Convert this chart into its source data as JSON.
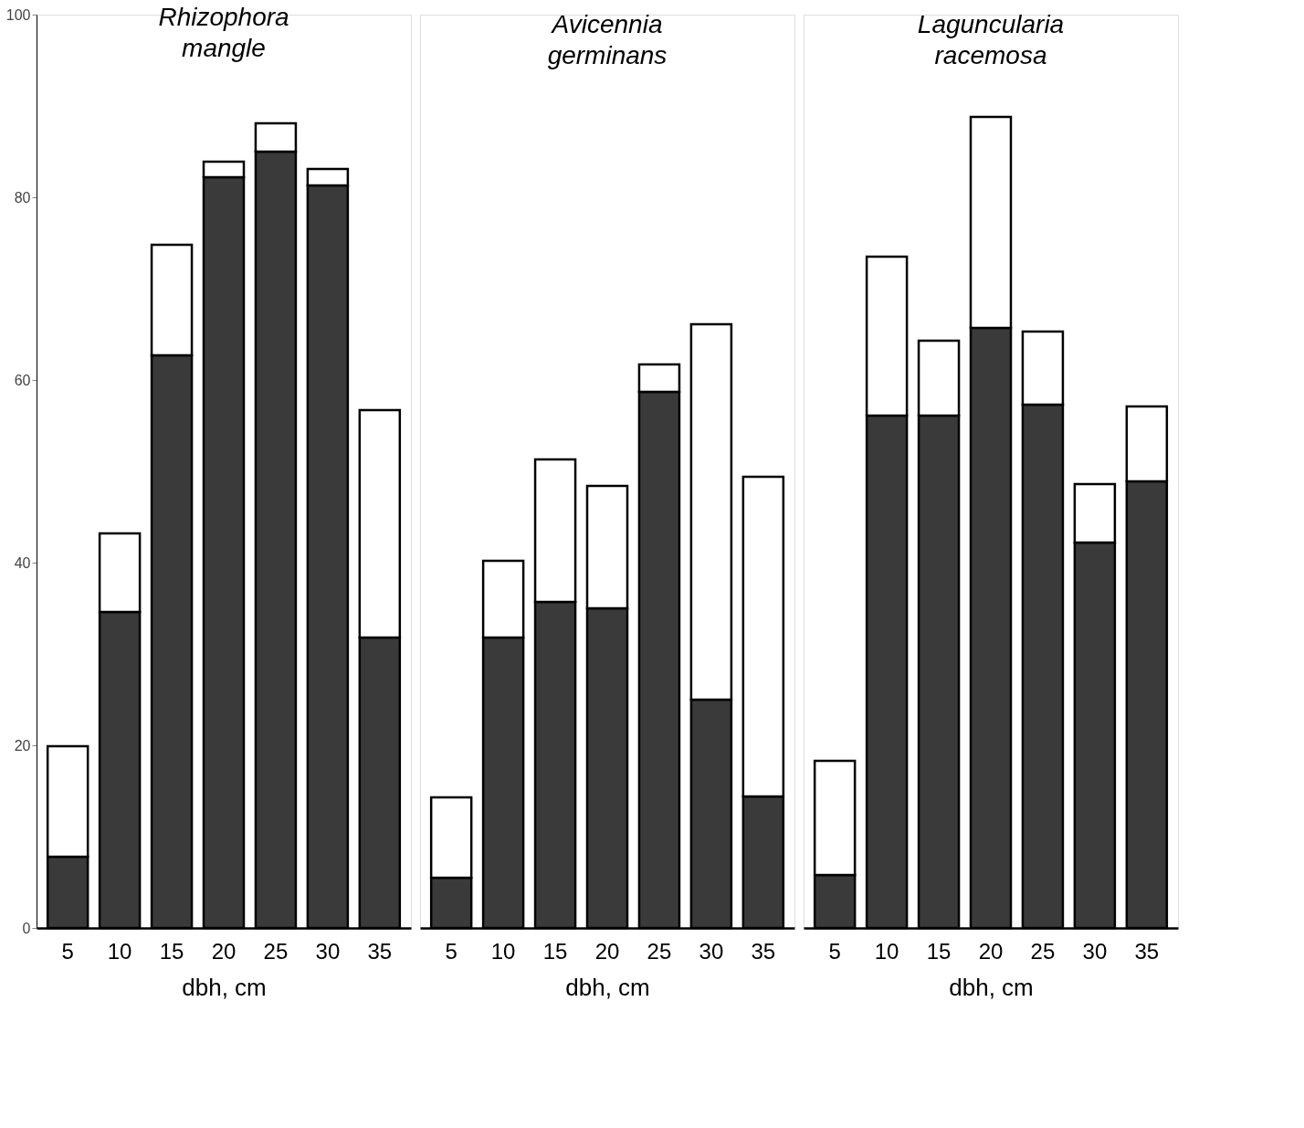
{
  "chart_data": [
    {
      "type": "bar",
      "stacked": true,
      "title": "Rhizophora mangle",
      "xlabel": "dbh, cm",
      "categories": [
        "5",
        "10",
        "15",
        "20",
        "25",
        "30",
        "35"
      ],
      "ylim": [
        0,
        100
      ],
      "yticks": [
        0,
        20,
        40,
        60,
        80,
        100
      ],
      "grid": false,
      "legend": false,
      "series": [
        {
          "color": "#3a3a3a",
          "values": [
            7.8,
            34.6,
            62.7,
            82.2,
            85.0,
            81.3,
            31.8
          ]
        },
        {
          "color": "#ffffff",
          "values": [
            12.1,
            8.6,
            12.1,
            1.7,
            3.1,
            1.8,
            24.9
          ]
        }
      ]
    },
    {
      "type": "bar",
      "stacked": true,
      "title": "Avicennia germinans",
      "xlabel": "dbh, cm",
      "categories": [
        "5",
        "10",
        "15",
        "20",
        "25",
        "30",
        "35"
      ],
      "ylim": [
        0,
        100
      ],
      "yticks": [
        0,
        20,
        40,
        60,
        80,
        100
      ],
      "grid": false,
      "legend": false,
      "tick_labels": "x",
      "series": [
        {
          "color": "#3a3a3a",
          "values": [
            5.5,
            31.8,
            35.7,
            35.0,
            58.7,
            25.0,
            14.4
          ]
        },
        {
          "color": "#ffffff",
          "values": [
            8.8,
            8.4,
            15.6,
            13.4,
            3.0,
            41.1,
            35.0
          ]
        }
      ]
    },
    {
      "type": "bar",
      "stacked": true,
      "title": "Laguncularia racemosa",
      "xlabel": "dbh, cm",
      "categories": [
        "5",
        "10",
        "15",
        "20",
        "25",
        "30",
        "35"
      ],
      "ylim": [
        0,
        100
      ],
      "yticks": [
        0,
        20,
        40,
        60,
        80,
        100
      ],
      "grid": false,
      "legend": false,
      "tick_labels": "x",
      "series": [
        {
          "color": "#3a3a3a",
          "values": [
            5.8,
            56.1,
            56.1,
            65.7,
            57.3,
            42.2,
            48.9
          ]
        },
        {
          "color": "#ffffff",
          "values": [
            12.5,
            17.4,
            8.2,
            23.1,
            8.0,
            6.4,
            8.2
          ]
        }
      ]
    }
  ]
}
